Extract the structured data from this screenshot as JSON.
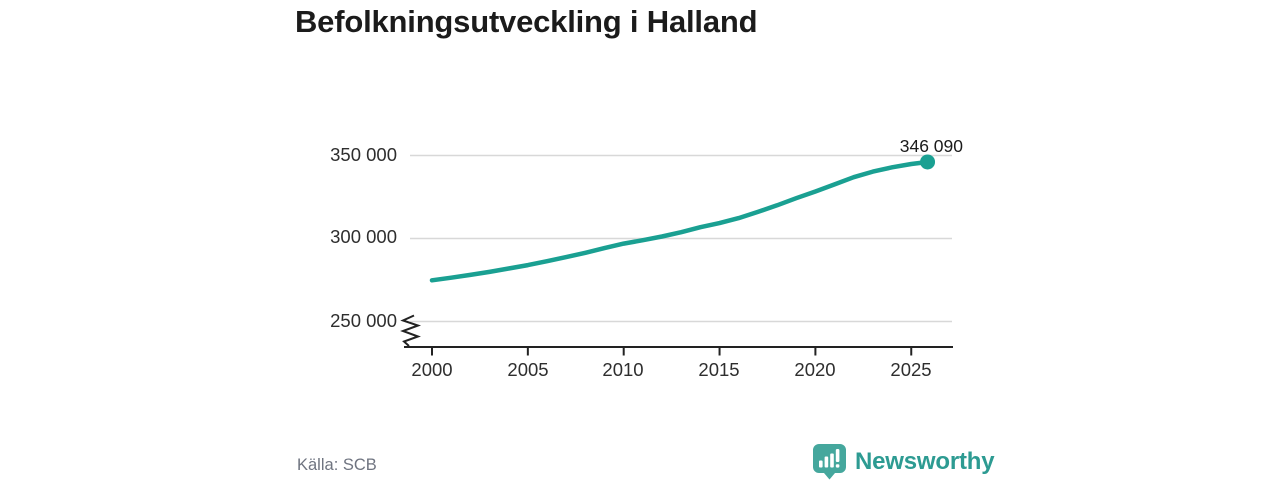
{
  "title": "Befolkningsutveckling i Halland",
  "source": "Källa: SCB",
  "logo": {
    "text": "Newsworthy",
    "icon": "bar-chart-speech-bubble"
  },
  "colors": {
    "line": "#1aa092",
    "grid": "#d8d8d8",
    "axis": "#222222",
    "title_text": "#1b1b1b",
    "tick_text": "#2e2e2e",
    "source_text": "#6f7480",
    "logo_text": "#2d9b92",
    "logo_bubble": "#45a79d"
  },
  "chart_data": {
    "type": "line",
    "title": "Befolkningsutveckling i Halland",
    "x": [
      2000,
      2001,
      2002,
      2003,
      2004,
      2005,
      2006,
      2007,
      2008,
      2009,
      2010,
      2011,
      2012,
      2013,
      2014,
      2015,
      2016,
      2017,
      2018,
      2019,
      2020,
      2021,
      2022,
      2023,
      2024,
      2025,
      2025.85
    ],
    "values": [
      274800,
      276400,
      278100,
      279900,
      281900,
      284000,
      286300,
      288800,
      291400,
      294200,
      296900,
      299000,
      301200,
      303800,
      306800,
      309300,
      312300,
      316000,
      320000,
      324300,
      328300,
      332600,
      336900,
      340300,
      342900,
      344900,
      346090
    ],
    "last_point": {
      "x": 2025.85,
      "value": 346090,
      "label": "346 090"
    },
    "xticks": [
      {
        "year": 2000,
        "label": "2000"
      },
      {
        "year": 2005,
        "label": "2005"
      },
      {
        "year": 2010,
        "label": "2010"
      },
      {
        "year": 2015,
        "label": "2015"
      },
      {
        "year": 2020,
        "label": "2020"
      },
      {
        "year": 2025,
        "label": "2025"
      }
    ],
    "yticks": [
      {
        "value": 350000,
        "label": "350 000"
      },
      {
        "value": 300000,
        "label": "300 000"
      },
      {
        "value": 250000,
        "label": "250 000"
      }
    ],
    "xlim": [
      1998.5,
      2027.2
    ],
    "ylim": [
      250000,
      350000
    ],
    "axis_break": true,
    "grid": "horizontal",
    "legend": "none",
    "source": "Källa: SCB"
  }
}
